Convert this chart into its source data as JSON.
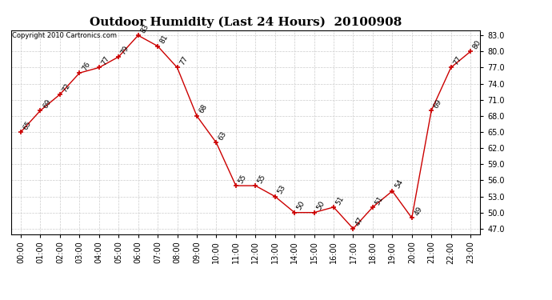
{
  "title": "Outdoor Humidity (Last 24 Hours)  20100908",
  "copyright": "Copyright 2010 Cartronics.com",
  "x_labels": [
    "00:00",
    "01:00",
    "02:00",
    "03:00",
    "04:00",
    "05:00",
    "06:00",
    "07:00",
    "08:00",
    "09:00",
    "10:00",
    "11:00",
    "12:00",
    "13:00",
    "14:00",
    "15:00",
    "16:00",
    "17:00",
    "18:00",
    "19:00",
    "20:00",
    "21:00",
    "22:00",
    "23:00"
  ],
  "y_values": [
    65,
    69,
    72,
    76,
    77,
    79,
    83,
    81,
    77,
    68,
    63,
    55,
    55,
    53,
    50,
    50,
    51,
    47,
    51,
    54,
    49,
    69,
    77,
    80
  ],
  "line_color": "#cc0000",
  "marker_color": "#cc0000",
  "background_color": "#ffffff",
  "grid_color": "#cccccc",
  "yticks": [
    47.0,
    50.0,
    53.0,
    56.0,
    59.0,
    62.0,
    65.0,
    68.0,
    71.0,
    74.0,
    77.0,
    80.0,
    83.0
  ],
  "ylim_min": 46.0,
  "ylim_max": 84.0,
  "title_fontsize": 11,
  "annotation_fontsize": 6.5,
  "copyright_fontsize": 6.0,
  "tick_fontsize": 7.0
}
